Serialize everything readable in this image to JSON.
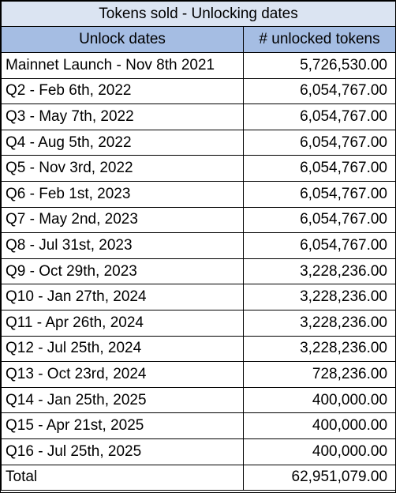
{
  "title": "Tokens sold - Unlocking dates",
  "headers": [
    "Unlock dates",
    "# unlocked tokens"
  ],
  "rows": [
    {
      "date": "Mainnet Launch - Nov 8th 2021",
      "tokens": "5,726,530.00"
    },
    {
      "date": "Q2 - Feb 6th, 2022",
      "tokens": "6,054,767.00"
    },
    {
      "date": "Q3 - May 7th, 2022",
      "tokens": "6,054,767.00"
    },
    {
      "date": "Q4 - Aug 5th, 2022",
      "tokens": "6,054,767.00"
    },
    {
      "date": "Q5 - Nov 3rd, 2022",
      "tokens": "6,054,767.00"
    },
    {
      "date": "Q6 - Feb 1st, 2023",
      "tokens": "6,054,767.00"
    },
    {
      "date": "Q7 - May 2nd, 2023",
      "tokens": "6,054,767.00"
    },
    {
      "date": "Q8 - Jul 31st, 2023",
      "tokens": "6,054,767.00"
    },
    {
      "date": "Q9 - Oct 29th, 2023",
      "tokens": "3,228,236.00"
    },
    {
      "date": "Q10 - Jan 27th, 2024",
      "tokens": "3,228,236.00"
    },
    {
      "date": "Q11 - Apr 26th, 2024",
      "tokens": "3,228,236.00"
    },
    {
      "date": "Q12 - Jul 25th, 2024",
      "tokens": "3,228,236.00"
    },
    {
      "date": "Q13 - Oct 23rd, 2024",
      "tokens": "728,236.00"
    },
    {
      "date": "Q14 - Jan 25th, 2025",
      "tokens": "400,000.00"
    },
    {
      "date": "Q15 - Apr 21st, 2025",
      "tokens": "400,000.00"
    },
    {
      "date": "Q16 - Jul 25th, 2025",
      "tokens": "400,000.00"
    },
    {
      "date": "Total",
      "tokens": "62,951,079.00"
    }
  ],
  "colors": {
    "title_bg": "#dbe4f2",
    "header_bg": "#a5bde3"
  }
}
